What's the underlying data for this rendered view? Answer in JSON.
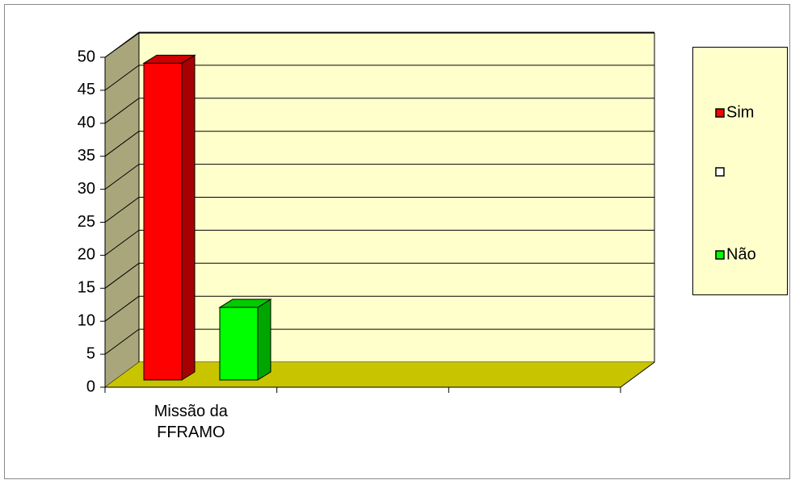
{
  "chart_data": {
    "type": "bar3d",
    "categories": [
      "Missão da FFRAMO",
      null,
      null
    ],
    "series": [
      {
        "name": "Sim",
        "color": "#ff0000",
        "values": [
          48,
          null,
          null
        ]
      },
      {
        "name": null,
        "color": "#ffffff",
        "values": [
          null,
          null,
          null
        ]
      },
      {
        "name": "Não",
        "color": "#00ff00",
        "values": [
          11,
          null,
          null
        ]
      }
    ],
    "ylim": [
      0,
      50
    ],
    "yticks": [
      0,
      5,
      10,
      15,
      20,
      25,
      30,
      35,
      40,
      45,
      50
    ],
    "grid": true,
    "legend": "right"
  }
}
